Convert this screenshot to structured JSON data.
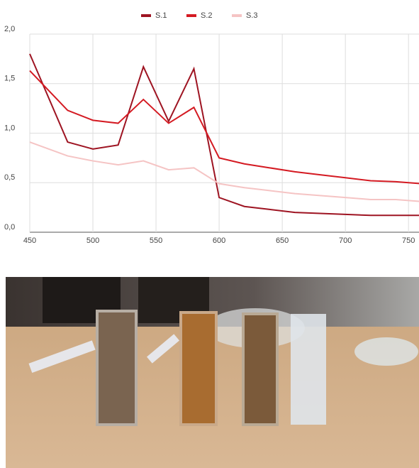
{
  "chart_data": {
    "type": "line",
    "x": [
      450,
      480,
      500,
      520,
      540,
      560,
      580,
      600,
      620,
      640,
      660,
      680,
      700,
      720,
      740,
      760
    ],
    "series": [
      {
        "name": "S.1",
        "color": "#9e1422",
        "values": [
          1.8,
          0.91,
          0.84,
          0.88,
          1.67,
          1.12,
          1.65,
          0.35,
          0.26,
          0.23,
          0.2,
          0.19,
          0.18,
          0.17,
          0.17,
          0.17
        ]
      },
      {
        "name": "S.2",
        "color": "#d41a22",
        "values": [
          1.63,
          1.23,
          1.13,
          1.1,
          1.34,
          1.1,
          1.26,
          0.75,
          0.69,
          0.65,
          0.61,
          0.58,
          0.55,
          0.52,
          0.51,
          0.49
        ]
      },
      {
        "name": "S.3",
        "color": "#f5c4c4",
        "values": [
          0.91,
          0.77,
          0.72,
          0.68,
          0.72,
          0.63,
          0.65,
          0.49,
          0.45,
          0.42,
          0.39,
          0.37,
          0.35,
          0.33,
          0.33,
          0.31
        ]
      }
    ],
    "xlim": [
      450,
      760
    ],
    "xticks": [
      450,
      500,
      550,
      600,
      650,
      700,
      750
    ],
    "ylim": [
      0,
      2
    ],
    "yticks": [
      {
        "value": 0,
        "label": "0,0"
      },
      {
        "value": 0.5,
        "label": "0,5"
      },
      {
        "value": 1,
        "label": "1,0"
      },
      {
        "value": 1.5,
        "label": "1,5"
      },
      {
        "value": 2,
        "label": "2,0"
      }
    ],
    "grid": true,
    "legend": "top"
  }
}
